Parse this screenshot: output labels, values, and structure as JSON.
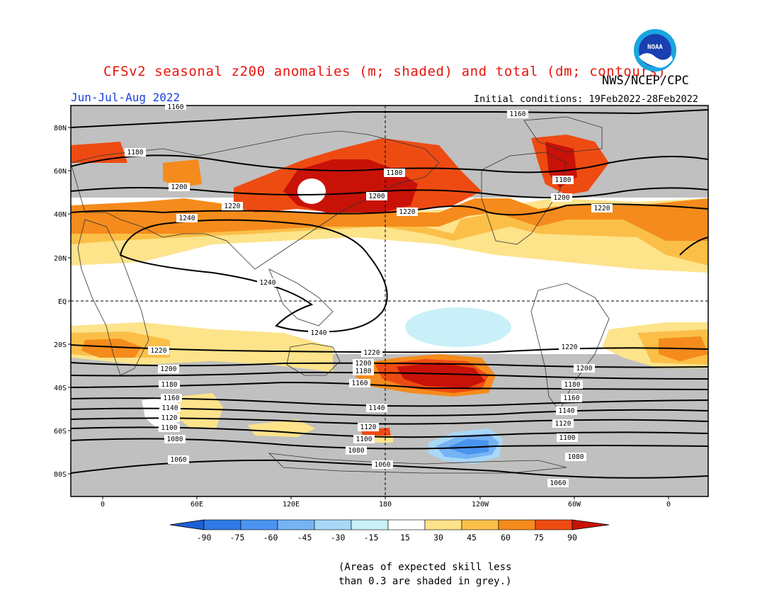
{
  "title": "CFSv2 seasonal z200 anomalies (m; shaded) and total (dm; contours)",
  "organization": "NWS/NCEP/CPC",
  "season": "Jun-Jul-Aug 2022",
  "initial_conditions": "Initial conditions: 19Feb2022-28Feb2022",
  "logo_text": "NOAA",
  "note_line1": "(Areas of expected skill less",
  "note_line2": "than 0.3 are shaded in grey.)",
  "lat_labels": [
    "80N",
    "60N",
    "40N",
    "20N",
    "EQ",
    "20S",
    "40S",
    "60S",
    "80S"
  ],
  "lon_labels": [
    "0",
    "60E",
    "120E",
    "180",
    "120W",
    "60W",
    "0"
  ],
  "colorbar": {
    "labels": [
      "-90",
      "-75",
      "-60",
      "-45",
      "-30",
      "-15",
      "15",
      "30",
      "45",
      "60",
      "75",
      "90"
    ],
    "colors": [
      "#1c5fd6",
      "#2f79e6",
      "#4a94f0",
      "#76b3f5",
      "#a8d8f7",
      "#c9f0f8",
      "#ffffff",
      "#fde38a",
      "#fbbf48",
      "#f58b1c",
      "#ee4b12",
      "#c81208"
    ]
  },
  "colors": {
    "grey_skill": "#c0c0c0",
    "contour": "#000000",
    "title": "#e8140c",
    "season": "#1a3fe0"
  },
  "contour_labels": [
    "1160",
    "1160",
    "1180",
    "1180",
    "1180",
    "1200",
    "1200",
    "1200",
    "1220",
    "1220",
    "1220",
    "1240",
    "1240",
    "1240",
    "1220",
    "1220",
    "1220",
    "1200",
    "1200",
    "1200",
    "1180",
    "1180",
    "1180",
    "1160",
    "1160",
    "1160",
    "1140",
    "1140",
    "1140",
    "1120",
    "1120",
    "1120",
    "1100",
    "1100",
    "1100",
    "1080",
    "1080",
    "1080",
    "1060",
    "1060",
    "1060"
  ]
}
